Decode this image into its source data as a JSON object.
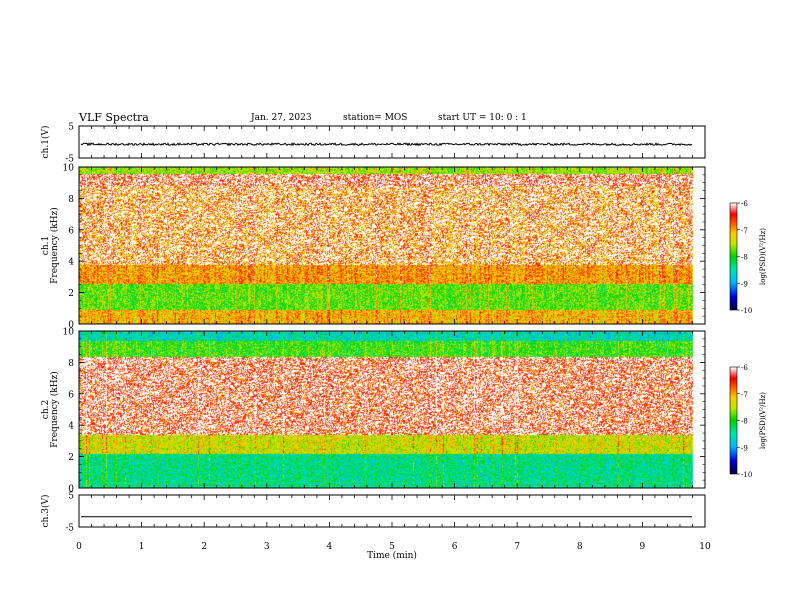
{
  "header": {
    "title": "VLF Spectra",
    "date": "Jan. 27, 2023",
    "station": "station= MOS",
    "start": "start UT =  10: 0  : 1"
  },
  "chart_data": [
    {
      "type": "line",
      "panel": "ch1-voltage",
      "ylabel": "ch.1(V)",
      "ylim": [
        -5,
        5
      ],
      "yticks": [
        "5",
        "-5"
      ],
      "series": [
        {
          "values_description_level": -0.7,
          "noise_amplitude": 0.35,
          "color": "#000000"
        }
      ]
    },
    {
      "type": "heatmap",
      "panel": "ch1-spectrogram",
      "ylabel": "ch.1\nFrequency (kHz)",
      "ylim": [
        0,
        10
      ],
      "yticks": [
        "0",
        "2",
        "4",
        "6",
        "8",
        "10"
      ],
      "colorbar": {
        "label": "log(PSD)(V²/Hz)",
        "range": [
          -10,
          -6
        ],
        "ticks": [
          "-6",
          "-7",
          "-8",
          "-9",
          "-10"
        ]
      },
      "bands": [
        {
          "from_khz": 9.6,
          "to_khz": 10.0,
          "level": -7.6
        },
        {
          "from_khz": 8.8,
          "to_khz": 9.6,
          "level": -6.6
        },
        {
          "from_khz": 3.8,
          "to_khz": 8.8,
          "level": -6.9
        },
        {
          "from_khz": 2.6,
          "to_khz": 3.8,
          "level": -7.0
        },
        {
          "from_khz": 0.9,
          "to_khz": 2.6,
          "level": -7.8
        },
        {
          "from_khz": 0.0,
          "to_khz": 0.9,
          "level": -7.1
        }
      ]
    },
    {
      "type": "heatmap",
      "panel": "ch2-spectrogram",
      "ylabel": "ch.2\nFrequency (kHz)",
      "ylim": [
        0,
        10
      ],
      "yticks": [
        "0",
        "2",
        "4",
        "6",
        "8",
        "10"
      ],
      "colorbar": {
        "label": "log(PSD)(V²/Hz)",
        "range": [
          -10,
          -6
        ],
        "ticks": [
          "-6",
          "-7",
          "-8",
          "-9",
          "-10"
        ]
      },
      "bands": [
        {
          "from_khz": 9.4,
          "to_khz": 10.0,
          "level": -8.6
        },
        {
          "from_khz": 8.4,
          "to_khz": 9.4,
          "level": -7.9
        },
        {
          "from_khz": 3.4,
          "to_khz": 8.4,
          "level": -6.6
        },
        {
          "from_khz": 2.2,
          "to_khz": 3.4,
          "level": -7.4
        },
        {
          "from_khz": 0.0,
          "to_khz": 2.2,
          "level": -8.4
        }
      ]
    },
    {
      "type": "line",
      "panel": "ch3-voltage",
      "ylabel": "ch.3(V)",
      "ylim": [
        -5,
        5
      ],
      "yticks": [
        "5",
        "-5"
      ],
      "xlabel": "Time (min)",
      "xlim": [
        0,
        10
      ],
      "xticks": [
        "0",
        "1",
        "2",
        "3",
        "4",
        "5",
        "6",
        "7",
        "8",
        "9",
        "10"
      ],
      "data_end_min": 9.8,
      "series": [
        {
          "values_description_level": -1.8,
          "noise_amplitude": 0,
          "color": "#000000"
        }
      ]
    }
  ],
  "colors": {
    "axis": "#000000",
    "background": "#ffffff"
  }
}
